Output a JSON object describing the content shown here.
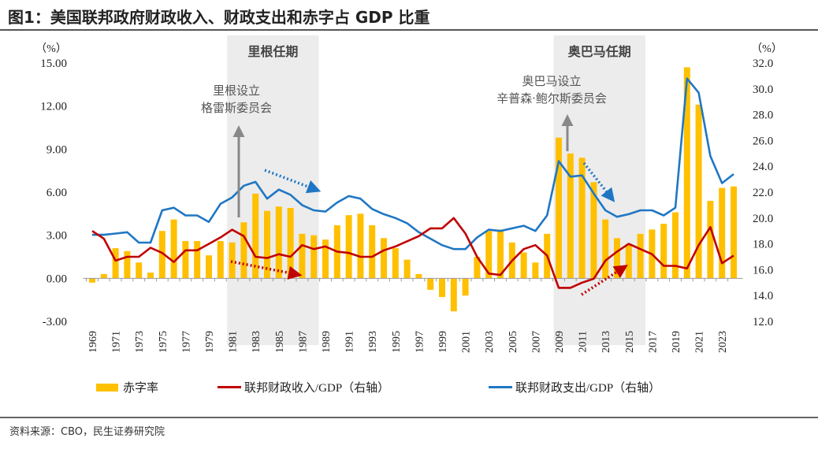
{
  "title": "图1：美国联邦政府财政收入、财政支出和赤字占 GDP 比重",
  "source": "资料来源：CBO，民生证券研究院",
  "colors": {
    "deficit": "#ffc000",
    "revenue": "#c00000",
    "outlays": "#1f77c4",
    "shade": "#ececec",
    "annotation_arrow": "#888888"
  },
  "chart_data": {
    "type": "bar+line",
    "title": "美国联邦政府财政收入、财政支出和赤字占 GDP 比重",
    "x": [
      1969,
      1970,
      1971,
      1972,
      1973,
      1974,
      1975,
      1976,
      1977,
      1978,
      1979,
      1980,
      1981,
      1982,
      1983,
      1984,
      1985,
      1986,
      1987,
      1988,
      1989,
      1990,
      1991,
      1992,
      1993,
      1994,
      1995,
      1996,
      1997,
      1998,
      1999,
      2000,
      2001,
      2002,
      2003,
      2004,
      2005,
      2006,
      2007,
      2008,
      2009,
      2010,
      2011,
      2012,
      2013,
      2014,
      2015,
      2016,
      2017,
      2018,
      2019,
      2020,
      2021,
      2022,
      2023,
      2024
    ],
    "x_tick_labels": [
      "1969",
      "1971",
      "1973",
      "1975",
      "1977",
      "1979",
      "1981",
      "1983",
      "1985",
      "1987",
      "1989",
      "1991",
      "1993",
      "1995",
      "1997",
      "1999",
      "2001",
      "2003",
      "2005",
      "2007",
      "2009",
      "2011",
      "2013",
      "2015",
      "2017",
      "2019",
      "2021",
      "2023"
    ],
    "left_axis": {
      "label": "（%）",
      "ylim": [
        -3,
        15
      ],
      "ticks": [
        "15.00",
        "12.00",
        "9.00",
        "6.00",
        "3.00",
        "0.00",
        "-3.00"
      ]
    },
    "right_axis": {
      "label": "（%）",
      "ylim": [
        12,
        32
      ],
      "ticks": [
        "32.0",
        "30.0",
        "28.0",
        "26.0",
        "24.0",
        "22.0",
        "20.0",
        "18.0",
        "16.0",
        "14.0",
        "12.0"
      ]
    },
    "series": [
      {
        "name": "赤字率",
        "type": "bar",
        "axis": "left",
        "values": [
          -0.3,
          0.3,
          2.1,
          1.9,
          1.1,
          0.4,
          3.3,
          4.1,
          2.6,
          2.6,
          1.6,
          2.6,
          2.5,
          3.9,
          5.9,
          4.7,
          5.0,
          4.9,
          3.1,
          3.0,
          2.7,
          3.7,
          4.4,
          4.5,
          3.7,
          2.8,
          2.1,
          1.3,
          0.3,
          -0.8,
          -1.3,
          -2.3,
          -1.2,
          1.5,
          3.3,
          3.4,
          2.5,
          1.8,
          1.1,
          3.1,
          9.8,
          8.7,
          8.4,
          6.7,
          4.1,
          2.8,
          2.4,
          3.1,
          3.4,
          3.8,
          4.6,
          14.7,
          12.1,
          5.4,
          6.3,
          6.4
        ]
      },
      {
        "name": "联邦财政收入/GDP（右轴）",
        "type": "line",
        "axis": "right",
        "values": [
          19.0,
          18.4,
          16.7,
          17.0,
          17.0,
          17.7,
          17.3,
          16.6,
          17.5,
          17.5,
          18.0,
          18.5,
          19.1,
          18.6,
          17.0,
          16.9,
          17.2,
          17.0,
          17.9,
          17.6,
          17.8,
          17.4,
          17.3,
          17.0,
          17.0,
          17.5,
          17.8,
          18.2,
          18.6,
          19.2,
          19.2,
          20.0,
          18.8,
          17.0,
          15.7,
          15.6,
          16.7,
          17.6,
          17.9,
          17.1,
          14.6,
          14.6,
          15.0,
          15.3,
          16.7,
          17.4,
          18.0,
          17.6,
          17.2,
          16.3,
          16.3,
          16.1,
          17.9,
          19.3,
          16.5,
          17.1
        ]
      },
      {
        "name": "联邦财政支出/GDP（右轴）",
        "type": "line",
        "axis": "right",
        "values": [
          18.7,
          18.7,
          18.8,
          18.9,
          18.1,
          18.1,
          20.6,
          20.8,
          20.2,
          20.2,
          19.7,
          21.1,
          21.6,
          22.5,
          22.8,
          21.5,
          22.2,
          21.8,
          21.0,
          20.6,
          20.5,
          21.2,
          21.7,
          21.5,
          20.7,
          20.3,
          20.0,
          19.6,
          18.9,
          18.4,
          17.9,
          17.6,
          17.6,
          18.5,
          19.1,
          19.0,
          19.2,
          19.4,
          19.0,
          20.2,
          24.4,
          23.2,
          23.3,
          21.9,
          20.6,
          20.1,
          20.3,
          20.6,
          20.6,
          20.2,
          20.8,
          30.8,
          29.7,
          24.8,
          22.7,
          23.4
        ]
      }
    ],
    "shaded_periods": [
      {
        "label": "里根任期",
        "start": 1981,
        "end": 1988
      },
      {
        "label": "奥巴马任期",
        "start": 2009,
        "end": 2016
      }
    ],
    "annotations": [
      {
        "text_lines": [
          "里根设立",
          "格雷斯委员会"
        ],
        "year": 1982,
        "kind": "arrow-up"
      },
      {
        "text_lines": [
          "奥巴马设立",
          "辛普森·鲍尔斯委员会"
        ],
        "year": 2010,
        "kind": "arrow-up"
      },
      {
        "kind": "dotted-trend",
        "series": "联邦财政支出/GDP（右轴）",
        "direction": "down",
        "period": "里根任期"
      },
      {
        "kind": "dotted-trend",
        "series": "联邦财政收入/GDP（右轴）",
        "direction": "down",
        "period": "里根任期"
      },
      {
        "kind": "dotted-trend",
        "series": "联邦财政支出/GDP（右轴）",
        "direction": "down",
        "period": "奥巴马任期"
      },
      {
        "kind": "dotted-trend",
        "series": "联邦财政收入/GDP（右轴）",
        "direction": "up",
        "period": "奥巴马任期"
      }
    ],
    "legend": {
      "position": "bottom",
      "items": [
        "赤字率",
        "联邦财政收入/GDP（右轴）",
        "联邦财政支出/GDP（右轴）"
      ]
    },
    "grid": false
  }
}
